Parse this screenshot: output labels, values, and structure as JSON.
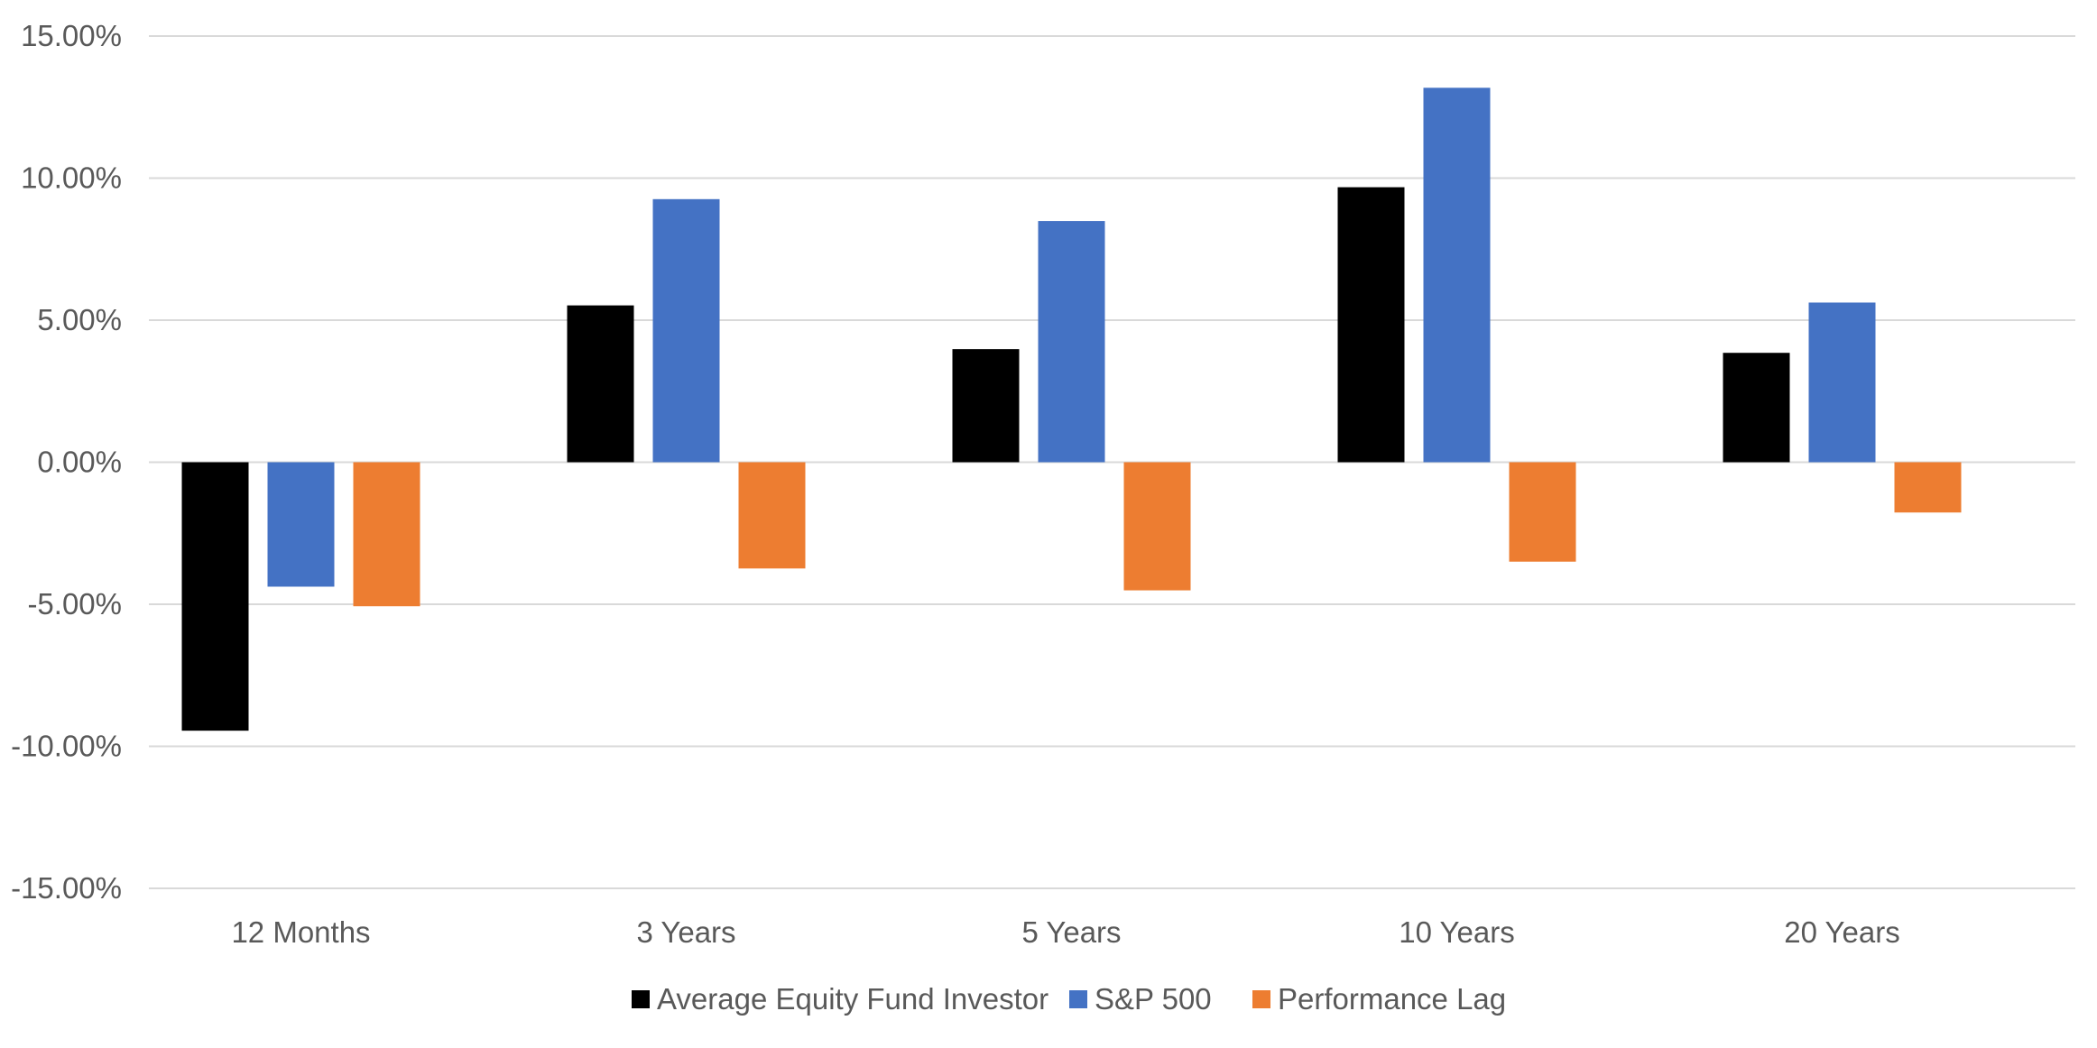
{
  "chart_data": {
    "type": "bar",
    "categories": [
      "12 Months",
      "3 Years",
      "5 Years",
      "10 Years",
      "20 Years"
    ],
    "series": [
      {
        "name": "Average Equity Fund Investor",
        "color": "#000000",
        "values": [
          -9.45,
          5.52,
          3.98,
          9.68,
          3.85
        ]
      },
      {
        "name": "S&P 500",
        "color": "#4472C4",
        "values": [
          -4.38,
          9.26,
          8.49,
          13.18,
          5.62
        ]
      },
      {
        "name": "Performance Lag",
        "color": "#ED7D31",
        "values": [
          -5.07,
          -3.74,
          -4.51,
          -3.5,
          -1.77
        ]
      }
    ],
    "yticks": [
      "-15.00%",
      "-10.00%",
      "-5.00%",
      "0.00%",
      "5.00%",
      "10.00%",
      "15.00%"
    ],
    "ylim": [
      -15,
      15
    ],
    "grid": true,
    "legend_position": "bottom",
    "title": "",
    "xlabel": "",
    "ylabel": ""
  }
}
